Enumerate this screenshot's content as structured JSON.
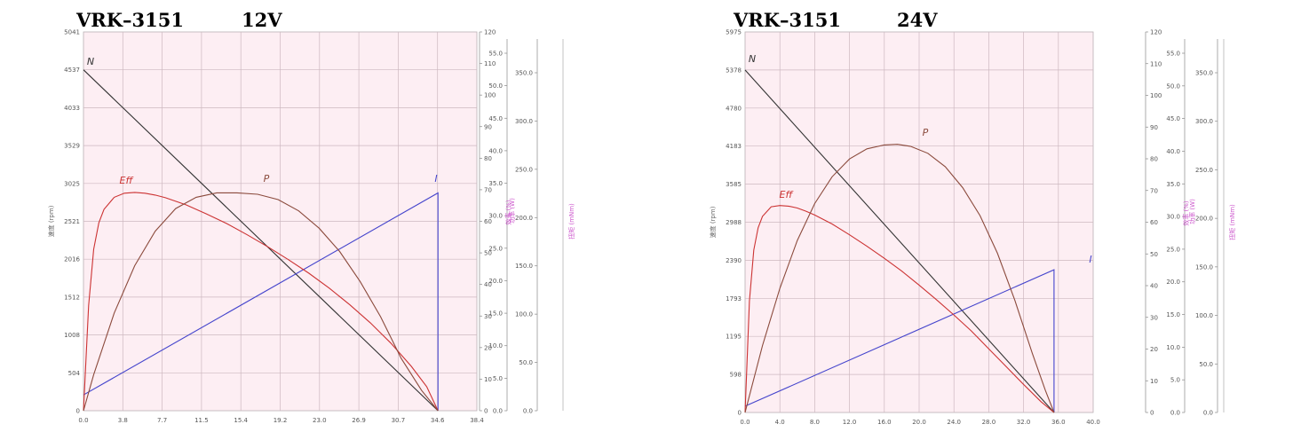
{
  "chart_data": [
    {
      "type": "line",
      "model": "VRK–3151",
      "voltage": "12V",
      "x_ticks": [
        "0.0",
        "3.8",
        "7.7",
        "11.5",
        "15.4",
        "19.2",
        "23.0",
        "26.9",
        "30.7",
        "34.6",
        "38.4"
      ],
      "xlim": [
        0,
        38.4
      ],
      "y_left_ticks": [
        "0",
        "504",
        "1008",
        "1512",
        "2016",
        "2521",
        "3025",
        "3529",
        "4033",
        "4537",
        "5041"
      ],
      "y_left_lim": [
        0,
        5041
      ],
      "y_left_label": "速度 (rpm)",
      "y_current_ticks": [
        "0",
        "10",
        "20",
        "30",
        "40",
        "50",
        "60",
        "70",
        "80",
        "90",
        "100",
        "110",
        "120"
      ],
      "y_current_lim": [
        0,
        120
      ],
      "y_eff_ticks": [
        "0.0",
        "5.0",
        "10.0",
        "15.0",
        "20.0",
        "25.0",
        "30.0",
        "35.0",
        "40.0",
        "45.0",
        "50.0",
        "55.0"
      ],
      "y_eff_label": "效率 (%)",
      "y_power_ticks": [
        "0.0",
        "50.0",
        "100.0",
        "150.0",
        "200.0",
        "250.0",
        "300.0",
        "350.0"
      ],
      "y_power_label": "功率 (W)",
      "y_torque_label": "扭矩 (mNm)",
      "series": [
        {
          "name": "N",
          "color": "#333333",
          "x": [
            0,
            34.6
          ],
          "y": [
            4537,
            0
          ]
        },
        {
          "name": "I",
          "color": "#4444cc",
          "x": [
            0,
            34.6,
            34.6
          ],
          "y": [
            5,
            69,
            0
          ]
        },
        {
          "name": "Eff",
          "color": "#cc3333",
          "x": [
            0,
            0.5,
            1.0,
            1.5,
            2.0,
            3.0,
            4.0,
            5.0,
            6.0,
            7.0,
            8.0,
            10.0,
            12.0,
            14.0,
            16.0,
            18.0,
            20.0,
            22.0,
            24.0,
            26.0,
            28.0,
            30.0,
            32.0,
            33.5,
            34.6
          ],
          "y": [
            0,
            1400,
            2150,
            2500,
            2680,
            2840,
            2895,
            2905,
            2895,
            2870,
            2835,
            2740,
            2620,
            2490,
            2340,
            2180,
            2010,
            1830,
            1630,
            1410,
            1170,
            900,
            590,
            320,
            0
          ]
        },
        {
          "name": "P",
          "color": "#8b4a3c",
          "x": [
            0,
            1,
            3,
            5,
            7,
            9,
            11,
            13,
            15,
            17,
            19,
            21,
            23,
            25,
            27,
            29,
            31,
            33,
            34.6
          ],
          "y": [
            0,
            480,
            1300,
            1930,
            2390,
            2690,
            2840,
            2900,
            2900,
            2880,
            2810,
            2660,
            2430,
            2120,
            1720,
            1250,
            700,
            270,
            0
          ]
        }
      ],
      "labels": {
        "N": "N",
        "I": "I",
        "Eff": "Eff",
        "P": "P"
      }
    },
    {
      "type": "line",
      "model": "VRK–3151",
      "voltage": "24V",
      "x_ticks": [
        "0.0",
        "4.0",
        "8.0",
        "12.0",
        "16.0",
        "20.0",
        "24.0",
        "28.0",
        "32.0",
        "36.0",
        "40.0"
      ],
      "xlim": [
        0,
        40
      ],
      "y_left_ticks": [
        "0",
        "598",
        "1195",
        "1793",
        "2390",
        "2988",
        "3585",
        "4183",
        "4780",
        "5378",
        "5975"
      ],
      "y_left_lim": [
        0,
        5975
      ],
      "y_left_label": "速度 (rpm)",
      "y_current_ticks": [
        "0",
        "10",
        "20",
        "30",
        "40",
        "50",
        "60",
        "70",
        "80",
        "90",
        "100",
        "110",
        "120"
      ],
      "y_current_lim": [
        0,
        120
      ],
      "y_eff_ticks": [
        "0.0",
        "5.0",
        "10.0",
        "15.0",
        "20.0",
        "25.0",
        "30.0",
        "35.0",
        "40.0",
        "45.0",
        "50.0",
        "55.0"
      ],
      "y_eff_label": "效率 (%)",
      "y_power_ticks": [
        "0.0",
        "50.0",
        "100.0",
        "150.0",
        "200.0",
        "250.0",
        "300.0",
        "350.0"
      ],
      "y_power_label": "功率 (W)",
      "y_torque_label": "扭矩 (mNm)",
      "series": [
        {
          "name": "N",
          "color": "#333333",
          "x": [
            0,
            35.5
          ],
          "y": [
            5378,
            0
          ]
        },
        {
          "name": "I",
          "color": "#4444cc",
          "x": [
            0,
            35.5,
            35.5
          ],
          "y": [
            2,
            45,
            0
          ]
        },
        {
          "name": "Eff",
          "color": "#cc3333",
          "x": [
            0,
            0.5,
            1.0,
            1.5,
            2.0,
            3.0,
            4.0,
            5.0,
            6.0,
            7.0,
            8.0,
            10.0,
            12.0,
            14.0,
            16.0,
            18.0,
            20.0,
            22.0,
            24.0,
            26.0,
            28.0,
            30.0,
            32.0,
            34.0,
            35.5
          ],
          "y": [
            0,
            1750,
            2550,
            2900,
            3080,
            3230,
            3250,
            3240,
            3210,
            3160,
            3100,
            2960,
            2790,
            2610,
            2420,
            2220,
            2000,
            1770,
            1530,
            1280,
            1000,
            720,
            440,
            170,
            0
          ]
        },
        {
          "name": "P",
          "color": "#8b4a3c",
          "x": [
            0,
            2,
            4,
            6,
            8,
            10,
            12,
            14,
            16,
            17.5,
            19,
            21,
            23,
            25,
            27,
            29,
            31,
            33,
            34.5,
            35.5
          ],
          "y": [
            0,
            1050,
            1950,
            2700,
            3280,
            3700,
            3980,
            4140,
            4200,
            4210,
            4180,
            4070,
            3860,
            3530,
            3090,
            2500,
            1760,
            930,
            350,
            0
          ]
        }
      ],
      "labels": {
        "N": "N",
        "I": "I",
        "Eff": "Eff",
        "P": "P"
      }
    }
  ]
}
